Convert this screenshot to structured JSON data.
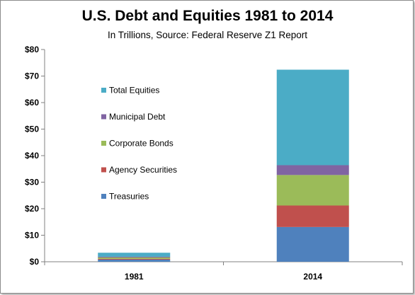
{
  "chart_data": {
    "type": "bar",
    "stacked": true,
    "title": "U.S. Debt and Equities 1981 to 2014",
    "subtitle": "In Trillions, Source: Federal Reserve Z1 Report",
    "categories": [
      "1981",
      "2014"
    ],
    "ylim": [
      0,
      80
    ],
    "yticks": [
      0,
      10,
      20,
      30,
      40,
      50,
      60,
      70,
      80
    ],
    "ytick_labels": [
      "$0",
      "$10",
      "$20",
      "$30",
      "$40",
      "$50",
      "$60",
      "$70",
      "$80"
    ],
    "grid": false,
    "legend_position": "left-inside",
    "series": [
      {
        "name": "Treasuries",
        "color": "#4f81bd",
        "values": [
          0.8,
          13.1
        ]
      },
      {
        "name": "Agency Securities",
        "color": "#c0504d",
        "values": [
          0.3,
          8.1
        ]
      },
      {
        "name": "Corporate Bonds",
        "color": "#9bbb59",
        "values": [
          0.5,
          11.5
        ]
      },
      {
        "name": "Municipal Debt",
        "color": "#8064a2",
        "values": [
          0.3,
          3.7
        ]
      },
      {
        "name": "Total Equities",
        "color": "#4bacc6",
        "values": [
          1.5,
          36.0
        ]
      }
    ]
  }
}
